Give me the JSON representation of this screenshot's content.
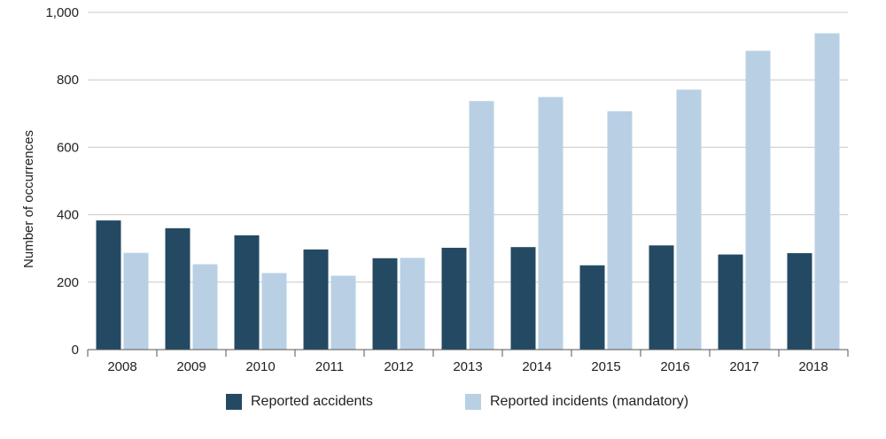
{
  "chart_data": {
    "type": "bar",
    "ylabel": "Number of occurrences",
    "ylim": [
      0,
      1000
    ],
    "yticks": [
      0,
      200,
      400,
      600,
      800,
      1000
    ],
    "ytick_labels": [
      "0",
      "200",
      "400",
      "600",
      "800",
      "1,000"
    ],
    "categories": [
      "2008",
      "2009",
      "2010",
      "2011",
      "2012",
      "2013",
      "2014",
      "2015",
      "2016",
      "2017",
      "2018"
    ],
    "series": [
      {
        "name": "Reported accidents",
        "color": "#244a63",
        "values": [
          383,
          360,
          339,
          297,
          271,
          302,
          304,
          250,
          309,
          282,
          286
        ]
      },
      {
        "name": "Reported incidents (mandatory)",
        "color": "#b9d0e4",
        "values": [
          287,
          253,
          227,
          219,
          272,
          737,
          749,
          707,
          771,
          886,
          938
        ]
      }
    ],
    "grid": true,
    "legend_position": "bottom"
  }
}
